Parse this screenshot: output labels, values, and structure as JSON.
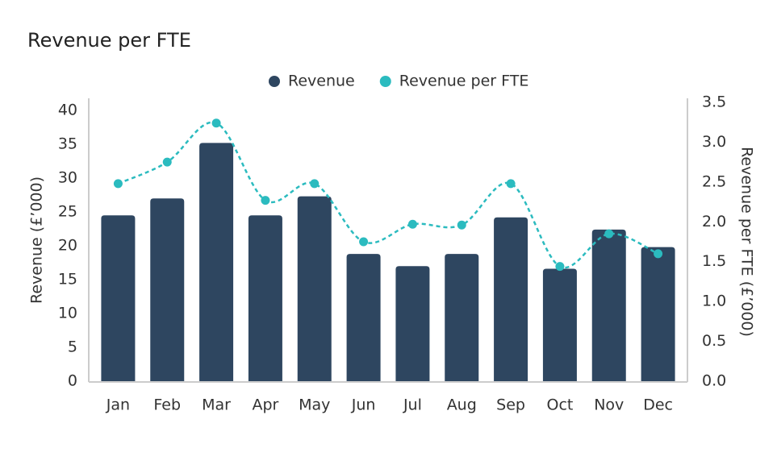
{
  "chart_data": {
    "type": "bar-line",
    "title": "Revenue per FTE",
    "categories": [
      "Jan",
      "Feb",
      "Mar",
      "Apr",
      "May",
      "Jun",
      "Jul",
      "Aug",
      "Sep",
      "Oct",
      "Nov",
      "Dec"
    ],
    "series": [
      {
        "name": "Revenue",
        "type": "bar",
        "color": "#2e4660",
        "values": [
          24.5,
          27,
          35.2,
          24.5,
          27.3,
          18.8,
          17,
          18.8,
          24.2,
          16.6,
          22.4,
          19.8
        ]
      },
      {
        "name": "Revenue per FTE",
        "type": "line",
        "axis": "y2",
        "color": "#2bbbbf",
        "values": [
          2.48,
          2.75,
          3.24,
          2.27,
          2.48,
          1.75,
          1.97,
          1.96,
          2.48,
          1.44,
          1.85,
          1.6
        ]
      }
    ],
    "ylabel": "Revenue (£’000)",
    "y2label": "Revenue per FTE (£’000)",
    "ylim": [
      0,
      40
    ],
    "yticks": [
      0,
      5,
      10,
      15,
      20,
      25,
      30,
      35,
      40
    ],
    "y2lim": [
      0,
      3.5
    ],
    "y2ticks": [
      {
        "value": 0,
        "label": "0.0"
      },
      0.5,
      {
        "value": 1,
        "label": "1.0"
      },
      1.5,
      {
        "value": 2,
        "label": "2.0"
      },
      2.5,
      {
        "value": 3,
        "label": "3.0"
      },
      3.5
    ],
    "legend": "top"
  }
}
